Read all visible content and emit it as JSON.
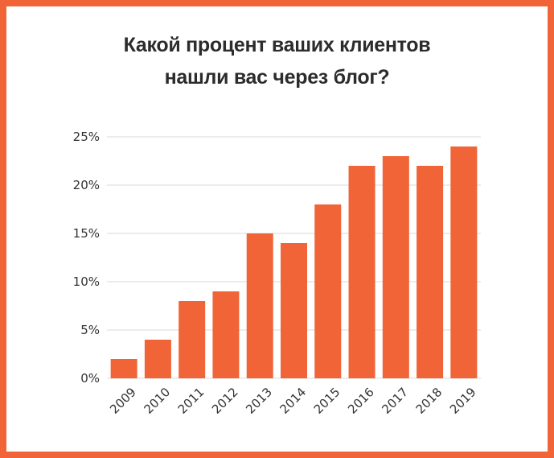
{
  "title_lines": [
    "Какой процент ваших клиентов",
    "нашли вас через блог?"
  ],
  "colors": {
    "bar": "#f06437",
    "frame": "#f06437",
    "grid": "#d9d9d9",
    "text": "#333333"
  },
  "chart_data": {
    "type": "bar",
    "title": "Какой процент ваших клиентов нашли вас через блог?",
    "categories": [
      "2009",
      "2010",
      "2011",
      "2012",
      "2013",
      "2014",
      "2015",
      "2016",
      "2017",
      "2018",
      "2019"
    ],
    "values": [
      2,
      4,
      8,
      9,
      15,
      14,
      18,
      22,
      23,
      22,
      24
    ],
    "y_ticks": [
      "0%",
      "5%",
      "10%",
      "15%",
      "20%",
      "25%"
    ],
    "xlabel": "",
    "ylabel": "",
    "ylim": [
      0,
      25
    ],
    "grid": true,
    "legend": "none"
  }
}
